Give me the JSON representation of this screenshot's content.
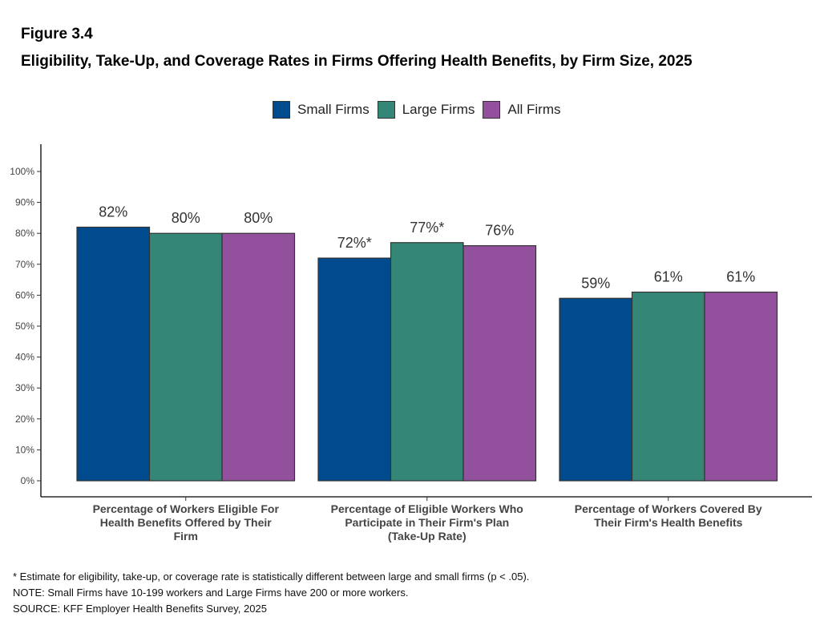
{
  "figure_label": "Figure 3.4",
  "figure_title": "Eligibility, Take-Up, and Coverage Rates in Firms Offering Health Benefits, by Firm Size, 2025",
  "notes": [
    "* Estimate for eligibility, take-up, or coverage rate is statistically different between large and small firms (p < .05).",
    "NOTE: Small Firms have 10-199 workers and Large Firms have 200 or more workers.",
    "SOURCE: KFF Employer Health Benefits Survey, 2025"
  ],
  "chart_data": {
    "type": "bar",
    "legend_position": "top-center",
    "grid": false,
    "ylim": [
      0,
      100
    ],
    "yticks": [
      0,
      10,
      20,
      30,
      40,
      50,
      60,
      70,
      80,
      90,
      100
    ],
    "ytick_labels": [
      "0%",
      "10%",
      "20%",
      "30%",
      "40%",
      "50%",
      "60%",
      "70%",
      "80%",
      "90%",
      "100%"
    ],
    "categories": [
      [
        "Percentage of Workers Eligible For",
        "Health Benefits Offered by Their",
        "Firm"
      ],
      [
        "Percentage of Eligible Workers Who",
        "Participate in Their Firm's Plan",
        "(Take-Up Rate)"
      ],
      [
        "Percentage of Workers Covered By",
        "Their Firm's Health Benefits"
      ]
    ],
    "series": [
      {
        "name": "Small Firms",
        "color": "#004b8d",
        "values": [
          82,
          72,
          59
        ],
        "labels": [
          "82%",
          "72%*",
          "59%"
        ]
      },
      {
        "name": "Large Firms",
        "color": "#348776",
        "values": [
          80,
          77,
          61
        ],
        "labels": [
          "80%",
          "77%*",
          "61%"
        ]
      },
      {
        "name": "All Firms",
        "color": "#93519d",
        "values": [
          80,
          76,
          61
        ],
        "labels": [
          "80%",
          "76%",
          "61%"
        ]
      }
    ]
  }
}
